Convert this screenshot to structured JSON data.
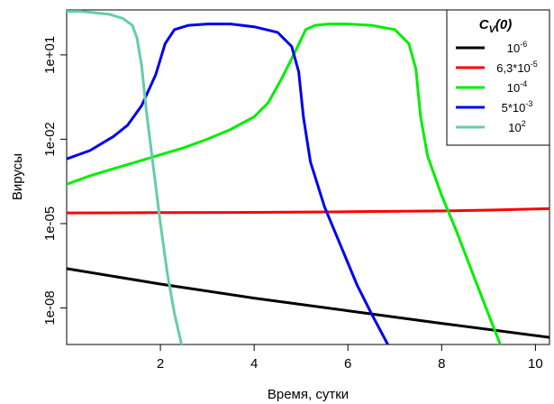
{
  "chart_data": {
    "type": "line",
    "title": "",
    "xlabel": "Время, сутки",
    "ylabel": "Вирусы",
    "xlim": [
      0,
      10.3
    ],
    "ylim_log10": [
      -9.3,
      2.6
    ],
    "y_scale": "log",
    "x_ticks": [
      2,
      4,
      6,
      8,
      10
    ],
    "x_tick_labels": [
      "2",
      "4",
      "6",
      "8",
      "10"
    ],
    "y_ticks_log10": [
      1,
      -2,
      -5,
      -8
    ],
    "y_tick_labels": [
      "1e+01",
      "1e-02",
      "1e-05",
      "1e-08"
    ],
    "grid": false,
    "legend": {
      "placement": "top-right",
      "title_main": "C",
      "title_sub": "V",
      "title_tail": "(0)",
      "entries": [
        {
          "base": "10",
          "sup": "-6"
        },
        {
          "base": "6,3*10",
          "sup": "-5"
        },
        {
          "base": "10",
          "sup": "-4"
        },
        {
          "base": "5*10",
          "sup": "-3"
        },
        {
          "base": "10",
          "sup": "2"
        }
      ]
    },
    "series": [
      {
        "color": "#000000",
        "x": [
          0,
          2,
          4,
          6,
          8,
          10.3
        ],
        "log10y": [
          -6.6,
          -7.15,
          -7.65,
          -8.1,
          -8.55,
          -9.05
        ]
      },
      {
        "color": "#ff0000",
        "x": [
          0,
          2,
          4,
          6,
          8,
          9,
          10.3
        ],
        "log10y": [
          -4.62,
          -4.61,
          -4.6,
          -4.58,
          -4.55,
          -4.52,
          -4.47
        ]
      },
      {
        "color": "#00ee00",
        "x": [
          0,
          0.5,
          1,
          1.5,
          2,
          2.5,
          3,
          3.5,
          4,
          4.3,
          4.6,
          4.9,
          5.1,
          5.3,
          5.6,
          6,
          6.5,
          7,
          7.3,
          7.45,
          7.55,
          7.7,
          8,
          8.3,
          8.6,
          8.9,
          9.25
        ],
        "log10y": [
          -3.6,
          -3.3,
          -3.05,
          -2.8,
          -2.55,
          -2.3,
          -2.0,
          -1.65,
          -1.2,
          -0.7,
          0.2,
          1.2,
          1.9,
          2.05,
          2.1,
          2.1,
          2.05,
          1.9,
          1.4,
          0.5,
          -1.2,
          -2.6,
          -4.0,
          -5.2,
          -6.5,
          -7.8,
          -9.3
        ]
      },
      {
        "color": "#0000ee",
        "x": [
          0,
          0.5,
          1,
          1.3,
          1.6,
          1.9,
          2.1,
          2.3,
          2.6,
          3,
          3.5,
          4,
          4.5,
          4.8,
          4.95,
          5.05,
          5.2,
          5.5,
          5.9,
          6.2,
          6.5,
          6.85
        ],
        "log10y": [
          -2.7,
          -2.4,
          -1.9,
          -1.5,
          -0.8,
          0.3,
          1.4,
          1.9,
          2.05,
          2.1,
          2.1,
          2.0,
          1.8,
          1.3,
          0.4,
          -1.2,
          -2.8,
          -4.4,
          -6.0,
          -7.2,
          -8.2,
          -9.3
        ]
      },
      {
        "color": "#66ccaa",
        "x": [
          0,
          0.3,
          0.6,
          0.9,
          1.2,
          1.4,
          1.5,
          1.6,
          1.7,
          1.85,
          2.0,
          2.15,
          2.3,
          2.45
        ],
        "log10y": [
          2.55,
          2.55,
          2.5,
          2.45,
          2.3,
          2.05,
          1.6,
          0.6,
          -1.0,
          -3.0,
          -5.0,
          -6.8,
          -8.2,
          -9.3
        ]
      }
    ]
  }
}
